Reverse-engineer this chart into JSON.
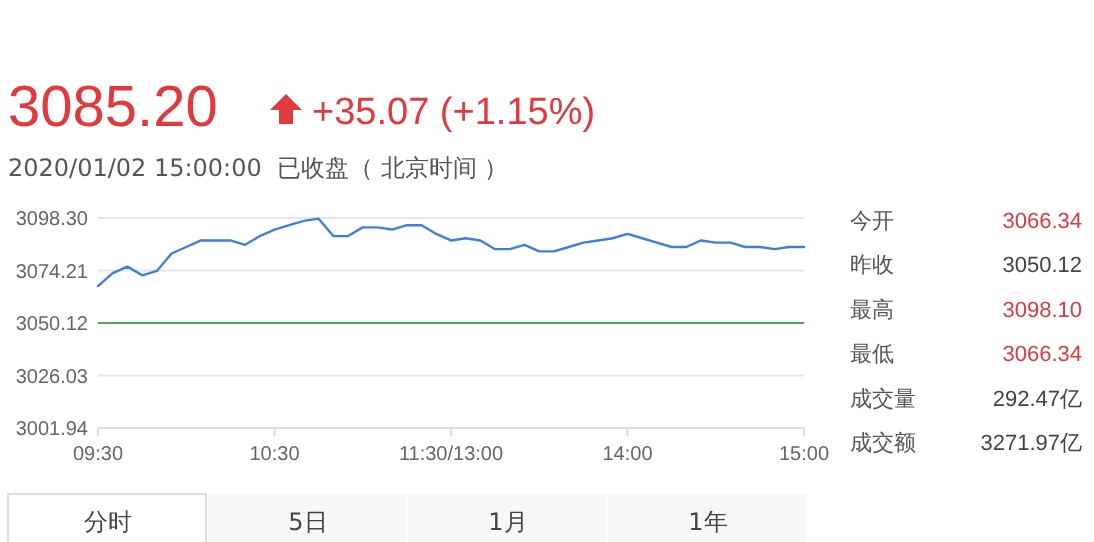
{
  "chart_data": {
    "type": "line",
    "categories": [
      "09:30",
      null,
      null,
      null,
      null,
      null,
      null,
      null,
      null,
      null,
      null,
      null,
      "10:30",
      null,
      null,
      null,
      null,
      null,
      null,
      null,
      null,
      null,
      null,
      null,
      "11:30/13:00",
      null,
      null,
      null,
      null,
      null,
      null,
      null,
      null,
      null,
      null,
      null,
      "14:00",
      null,
      null,
      null,
      null,
      null,
      null,
      null,
      null,
      null,
      null,
      null,
      "15:00"
    ],
    "series": [
      {
        "color": "#3f7fd9",
        "values": [
          3067,
          3073,
          3076,
          3072,
          3074,
          3082,
          3085,
          3088,
          3088,
          3088,
          3086,
          3090,
          3093,
          3095,
          3097,
          3098,
          3090,
          3090,
          3094,
          3094,
          3093,
          3095,
          3095,
          3091,
          3088,
          3089,
          3088,
          3084,
          3084,
          3086,
          3083,
          3083,
          3085,
          3087,
          3088,
          3089,
          3091,
          3089,
          3087,
          3085,
          3085,
          3088,
          3087,
          3087,
          3085,
          3085,
          3084,
          3085,
          3085
        ]
      }
    ],
    "ylim": [
      3001.94,
      3098.3
    ],
    "yticks": [
      3001.94,
      3026.03,
      3050.12,
      3074.21,
      {
        "value": 3098.3,
        "label": "3098.30"
      }
    ],
    "grid": "y",
    "marker": "none",
    "line_style": "solid",
    "ref_lines": [
      {
        "axis": "y",
        "value": 3050.12,
        "color": "#4caa4c"
      }
    ],
    "annotations": [
      "3085.20",
      "+35.07 (+1.15%)",
      "2020/01/02 15:00:00  已收盘（ 北京时间 ）",
      "今开",
      "3066.34",
      "昨收",
      "3050.12",
      "最高",
      "3098.10",
      "最低",
      "3066.34",
      "成交量",
      "292.47亿",
      "成交额",
      "3271.97亿",
      "分时",
      "5日",
      "1月",
      "1年"
    ]
  }
}
